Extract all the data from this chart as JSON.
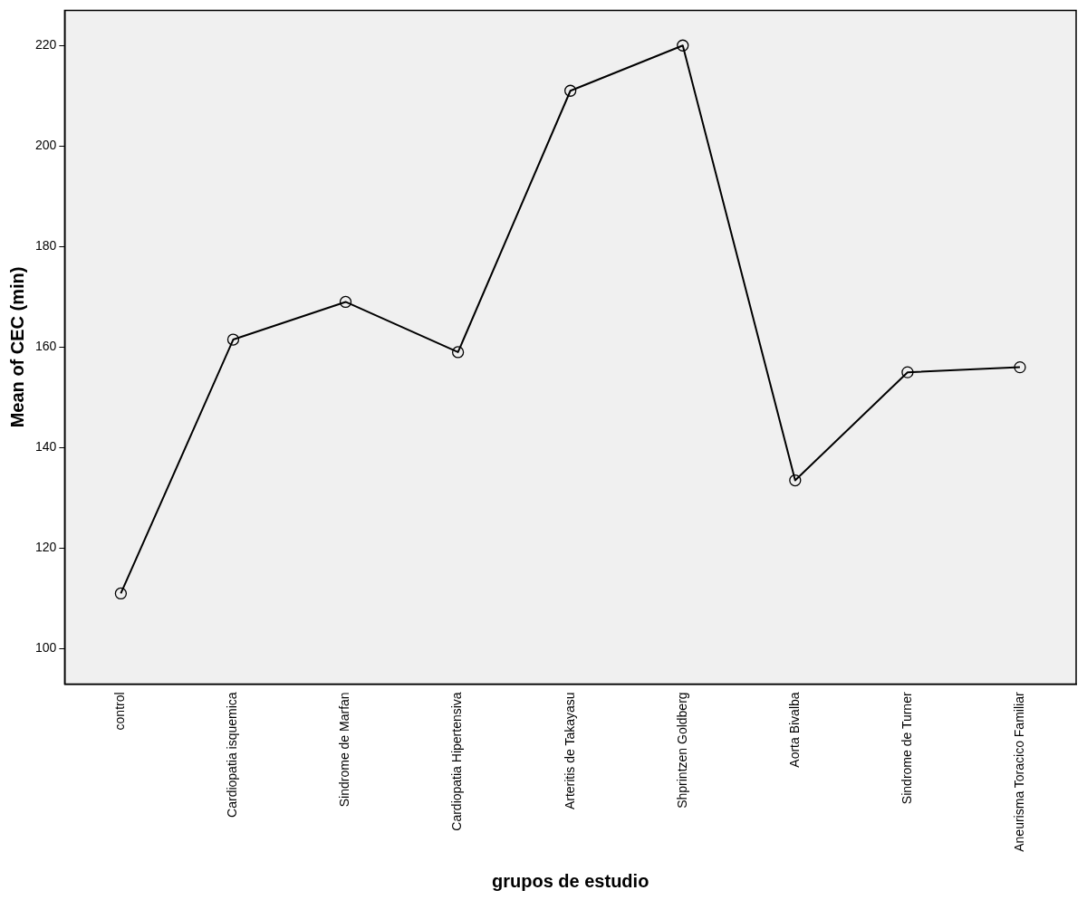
{
  "chart_data": {
    "type": "line",
    "xlabel": "grupos de estudio",
    "ylabel": "Mean of CEC (min)",
    "categories": [
      "control",
      "Cardiopatia isquemica",
      "Sindrome de Marfan",
      "Cardiopatia Hipertensiva",
      "Arteritis de Takayasu",
      "Shprintzen Goldberg",
      "Aorta Bivalba",
      "Sindrome de Turner",
      "Aneurisma Toracico Familiar"
    ],
    "series": [
      {
        "color": "#000000",
        "values": [
          111,
          161.5,
          169,
          159,
          211,
          220,
          133.5,
          155,
          156
        ]
      }
    ],
    "ylim": [
      93,
      227
    ],
    "yticks": [
      100,
      120,
      140,
      160,
      180,
      200,
      220
    ],
    "grid": false,
    "legend": false,
    "marker": "circle",
    "line_style": "solid"
  }
}
